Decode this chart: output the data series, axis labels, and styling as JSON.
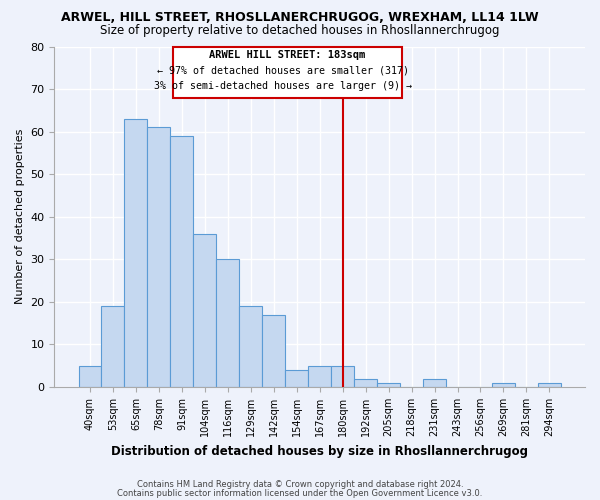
{
  "title": "ARWEL, HILL STREET, RHOSLLANERCHRUGOG, WREXHAM, LL14 1LW",
  "subtitle": "Size of property relative to detached houses in Rhosllannerchrugog",
  "xlabel": "Distribution of detached houses by size in Rhosllannerchrugog",
  "ylabel": "Number of detached properties",
  "bin_labels": [
    "40sqm",
    "53sqm",
    "65sqm",
    "78sqm",
    "91sqm",
    "104sqm",
    "116sqm",
    "129sqm",
    "142sqm",
    "154sqm",
    "167sqm",
    "180sqm",
    "192sqm",
    "205sqm",
    "218sqm",
    "231sqm",
    "243sqm",
    "256sqm",
    "269sqm",
    "281sqm",
    "294sqm"
  ],
  "bar_heights": [
    5,
    19,
    63,
    61,
    59,
    36,
    30,
    19,
    17,
    4,
    5,
    5,
    2,
    1,
    0,
    2,
    0,
    0,
    1,
    0,
    1
  ],
  "bar_color": "#c5d8f0",
  "bar_edge_color": "#5b9bd5",
  "vline_x": 11.0,
  "vline_color": "#cc0000",
  "annotation_title": "ARWEL HILL STREET: 183sqm",
  "annotation_line1": "← 97% of detached houses are smaller (317)",
  "annotation_line2": "3% of semi-detached houses are larger (9) →",
  "ylim": [
    0,
    80
  ],
  "yticks": [
    0,
    10,
    20,
    30,
    40,
    50,
    60,
    70,
    80
  ],
  "footer_line1": "Contains HM Land Registry data © Crown copyright and database right 2024.",
  "footer_line2": "Contains public sector information licensed under the Open Government Licence v3.0.",
  "bg_color": "#eef2fb",
  "grid_color": "#ffffff"
}
